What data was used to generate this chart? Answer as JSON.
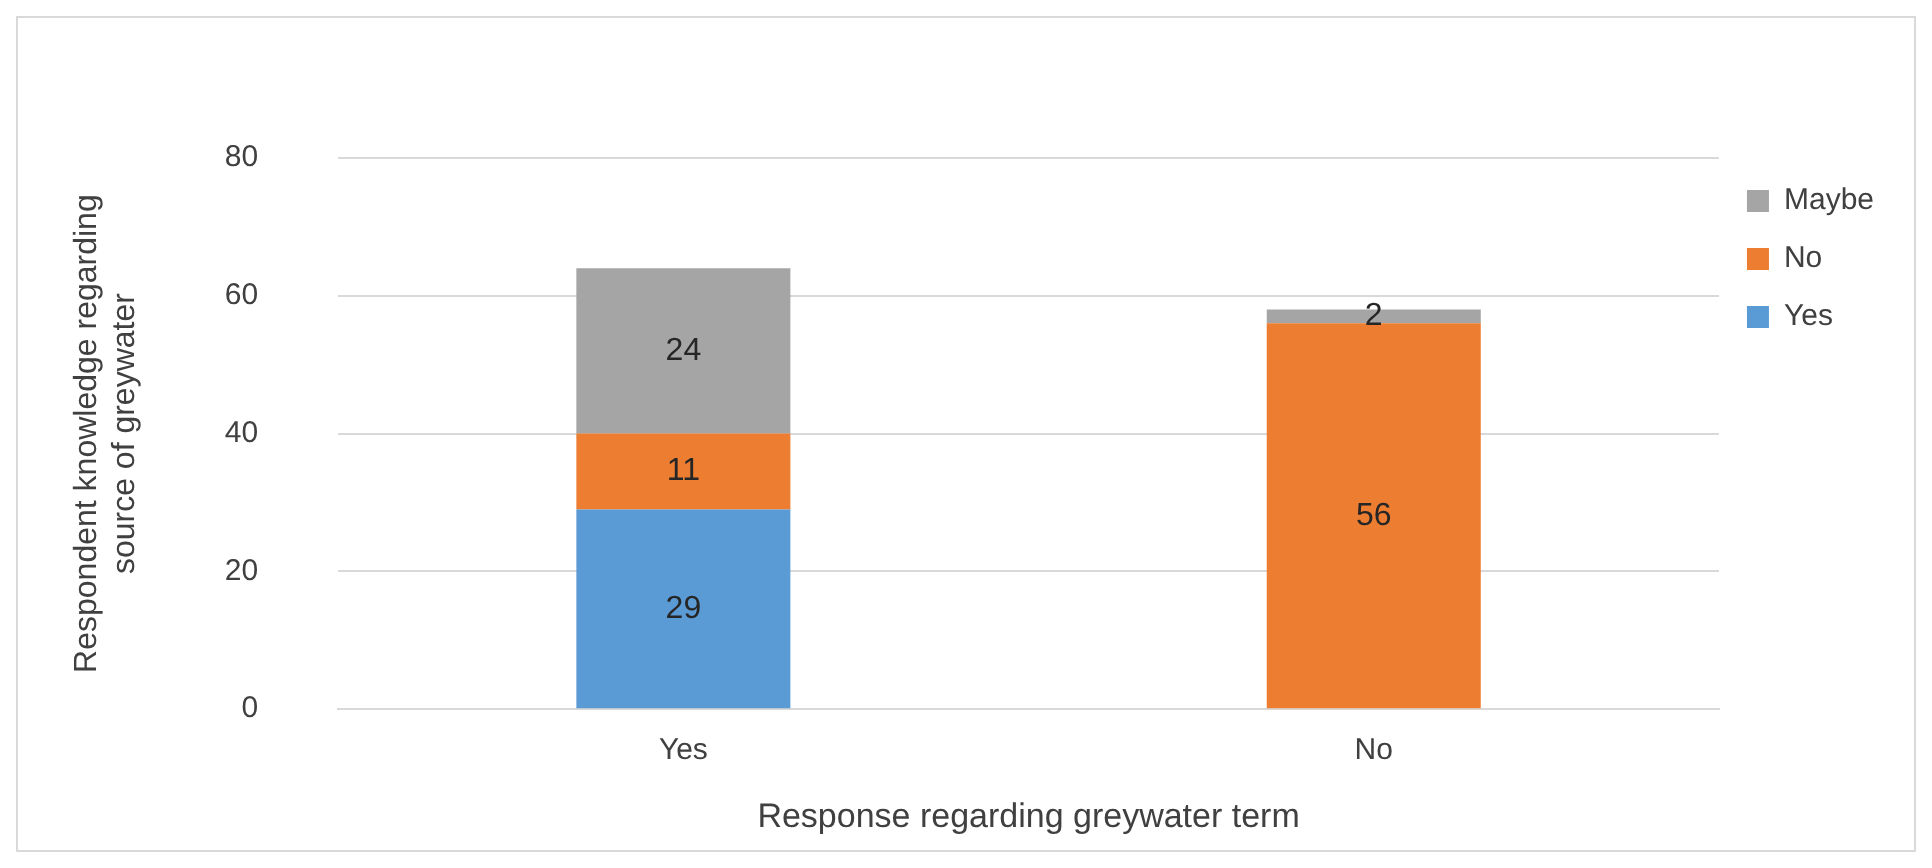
{
  "chart_data": {
    "type": "bar",
    "stacked": true,
    "xlabel": "Response regarding greywater term",
    "ylabel": "Respondent knowledge regarding source of greywater",
    "categories": [
      "Yes",
      "No"
    ],
    "series": [
      {
        "name": "Yes",
        "color": "#5b9bd5",
        "values": [
          29,
          null
        ]
      },
      {
        "name": "No",
        "color": "#ed7d31",
        "values": [
          11,
          56
        ]
      },
      {
        "name": "Maybe",
        "color": "#a5a5a5",
        "values": [
          24,
          2
        ]
      }
    ],
    "ylim": [
      0,
      80
    ],
    "yticks": [
      0,
      20,
      40,
      60,
      80
    ],
    "grid": "y",
    "legend": "right",
    "data_labels": true
  }
}
